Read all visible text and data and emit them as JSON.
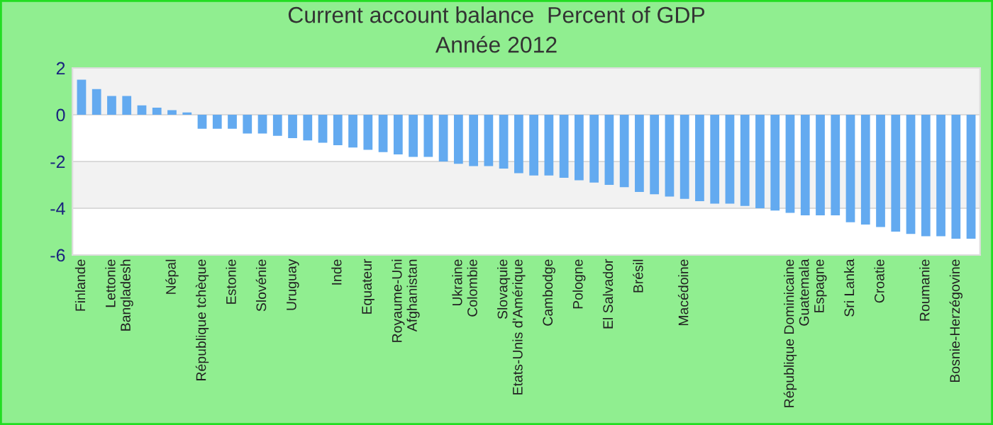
{
  "chart_data": {
    "type": "bar",
    "title": "Current account balance  Percent of GDP",
    "subtitle": "Année 2012",
    "categories": [
      "Finlande",
      null,
      "Lettonie",
      "Bangladesh",
      null,
      null,
      "Népal",
      null,
      "République tchèque",
      null,
      "Estonie",
      null,
      "Slovénie",
      null,
      "Uruguay",
      null,
      null,
      "Inde",
      null,
      "Equateur",
      null,
      "Royaume-Uni",
      "Afghanistan",
      null,
      null,
      "Ukraine",
      "Colombie",
      null,
      "Slovaquie",
      "Etats-Unis d'Amérique",
      null,
      "Cambodge",
      null,
      "Pologne",
      null,
      "El Salvador",
      null,
      "Brésil",
      null,
      null,
      "Macédoine",
      null,
      null,
      null,
      null,
      null,
      null,
      "République Dominicaine",
      "Guatemala",
      "Espagne",
      null,
      "Sri Lanka",
      null,
      "Croatie",
      null,
      null,
      "Roumanie",
      null,
      "Bosnie-Herzégovine",
      null
    ],
    "values": [
      1.5,
      1.1,
      0.8,
      0.8,
      0.4,
      0.3,
      0.2,
      0.1,
      -0.6,
      -0.6,
      -0.6,
      -0.8,
      -0.8,
      -0.9,
      -1.0,
      -1.1,
      -1.2,
      -1.3,
      -1.4,
      -1.5,
      -1.6,
      -1.7,
      -1.8,
      -1.8,
      -2.0,
      -2.1,
      -2.2,
      -2.2,
      -2.3,
      -2.5,
      -2.6,
      -2.6,
      -2.7,
      -2.8,
      -2.9,
      -3.0,
      -3.1,
      -3.3,
      -3.4,
      -3.5,
      -3.6,
      -3.7,
      -3.8,
      -3.8,
      -3.9,
      -4.0,
      -4.1,
      -4.2,
      -4.3,
      -4.3,
      -4.3,
      -4.6,
      -4.7,
      -4.8,
      -5.0,
      -5.1,
      -5.2,
      -5.2,
      -5.3,
      -5.3
    ],
    "color": "#63aaf0",
    "ylim": [
      -6,
      2
    ],
    "yticks": [
      -6,
      -4,
      -2,
      0,
      2
    ],
    "grid": "y"
  }
}
